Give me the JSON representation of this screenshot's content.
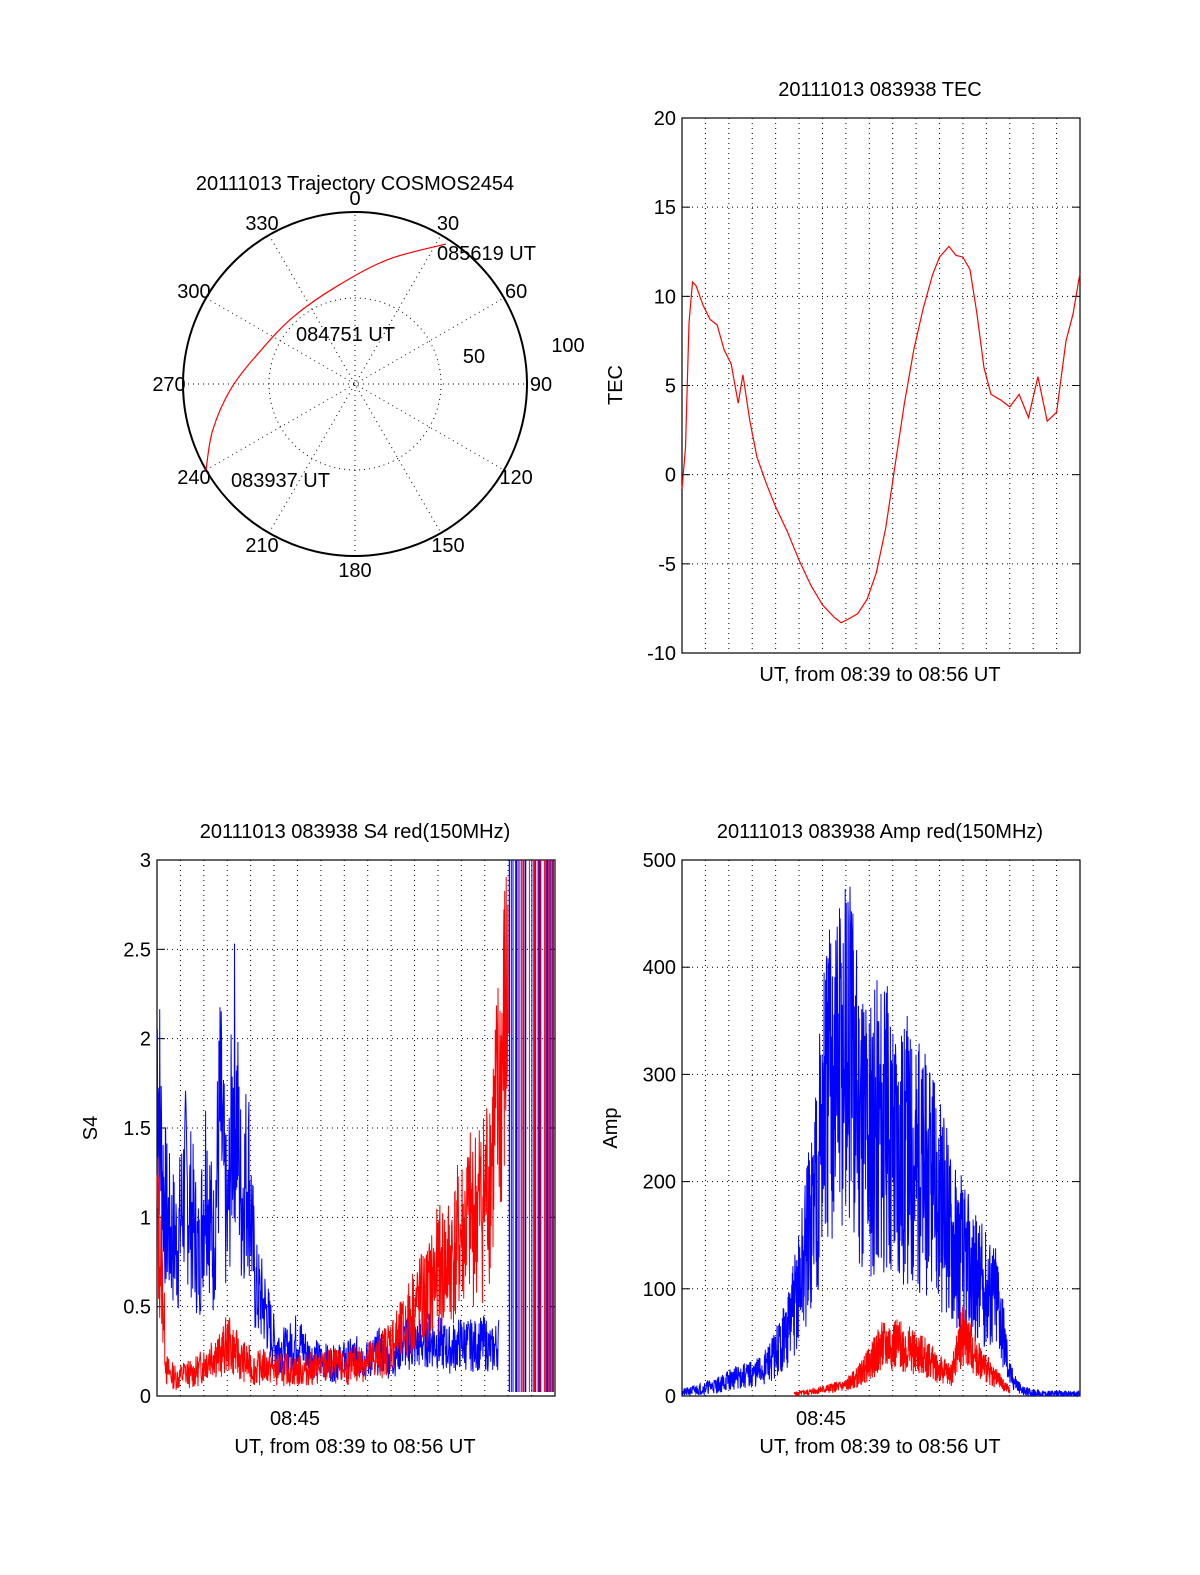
{
  "colors": {
    "red": "#ff0000",
    "blue": "#0000ff",
    "axis": "#000000",
    "background": "#ffffff"
  },
  "chart_data": [
    {
      "type": "polar",
      "title": "20111013 Trajectory COSMOS2454",
      "azimuth_labels": [
        "0",
        "30",
        "60",
        "90",
        "120",
        "150",
        "180",
        "210",
        "240",
        "270",
        "300",
        "330"
      ],
      "radial_labels": [
        "50",
        "100"
      ],
      "grid": true,
      "series": [
        {
          "color": "#ff0000",
          "points": [
            {
              "az": 240,
              "zenith": 100
            },
            {
              "az": 252,
              "zenith": 87
            },
            {
              "az": 268,
              "zenith": 72
            },
            {
              "az": 290,
              "zenith": 58
            },
            {
              "az": 318,
              "zenith": 53
            },
            {
              "az": 350,
              "zenith": 58
            },
            {
              "az": 15,
              "zenith": 75
            },
            {
              "az": 33,
              "zenith": 97
            }
          ]
        }
      ],
      "annotations": [
        {
          "text": "085619 UT",
          "az": 33,
          "zenith": 97
        },
        {
          "text": "084751 UT",
          "az": 318,
          "zenith": 53
        },
        {
          "text": "083937 UT",
          "az": 240,
          "zenith": 100
        }
      ]
    },
    {
      "type": "line",
      "title": "20111013 083938 TEC",
      "xlabel": "UT, from 08:39 to 08:56 UT",
      "ylabel": "TEC",
      "ylim": [
        -10,
        20
      ],
      "yticks": [
        "-10",
        "-5",
        "0",
        "5",
        "10",
        "15",
        "20"
      ],
      "xlim": [
        0,
        17
      ],
      "grid": true,
      "series": [
        {
          "color": "#ff0000",
          "x": [
            0.0,
            0.15,
            0.3,
            0.45,
            0.6,
            0.9,
            1.2,
            1.5,
            1.8,
            2.1,
            2.4,
            2.6,
            2.9,
            3.2,
            3.6,
            4.0,
            4.5,
            5.0,
            5.5,
            6.0,
            6.5,
            6.8,
            7.1,
            7.5,
            7.9,
            8.3,
            8.7,
            9.1,
            9.5,
            9.9,
            10.3,
            10.7,
            11.0,
            11.4,
            11.7,
            12.0,
            12.3,
            12.6,
            12.9,
            13.2,
            13.6,
            14.0,
            14.4,
            14.8,
            15.2,
            15.6,
            16.0,
            16.4,
            16.7,
            17.0
          ],
          "y": [
            -0.8,
            1.5,
            8.5,
            10.8,
            10.6,
            9.5,
            8.7,
            8.4,
            7.0,
            6.2,
            4.0,
            5.6,
            3.0,
            1.0,
            -0.5,
            -1.8,
            -3.2,
            -4.8,
            -6.2,
            -7.3,
            -8.0,
            -8.3,
            -8.1,
            -7.8,
            -7.0,
            -5.5,
            -3.0,
            0.5,
            4.0,
            7.0,
            9.3,
            11.2,
            12.2,
            12.8,
            12.3,
            12.2,
            11.5,
            9.0,
            6.0,
            4.5,
            4.2,
            3.8,
            4.5,
            3.2,
            5.5,
            3.0,
            3.5,
            7.5,
            9.0,
            11.3
          ]
        }
      ]
    },
    {
      "type": "line",
      "title": "20111013 083938 S4 red(150MHz)",
      "xlabel": "UT, from 08:39 to 08:56 UT",
      "ylabel": "S4",
      "ylim": [
        0,
        3
      ],
      "yticks": [
        "0",
        "0.5",
        "1",
        "1.5",
        "2",
        "2.5",
        "3"
      ],
      "xticks": [
        "08:45"
      ],
      "xlim": [
        0,
        17
      ],
      "grid": true,
      "series": [
        {
          "color": "#0000ff",
          "x": [
            0.0,
            0.2,
            0.4,
            0.6,
            0.9,
            1.2,
            1.5,
            1.8,
            2.1,
            2.4,
            2.7,
            3.0,
            3.3,
            3.6,
            3.9,
            4.2,
            4.6,
            5.0,
            5.5,
            6.0,
            6.5,
            7.0,
            7.5,
            8.0,
            8.5,
            9.0,
            9.5,
            10.0,
            10.5,
            11.0,
            11.5,
            12.0,
            12.5,
            13.0,
            13.5,
            14.0,
            14.3,
            14.6
          ],
          "y": [
            2.0,
            1.3,
            1.0,
            0.9,
            0.85,
            1.2,
            1.0,
            0.75,
            1.3,
            0.8,
            1.6,
            0.9,
            1.8,
            1.1,
            1.3,
            0.6,
            0.5,
            0.3,
            0.25,
            0.32,
            0.22,
            0.2,
            0.18,
            0.2,
            0.22,
            0.2,
            0.25,
            0.2,
            0.3,
            0.28,
            0.32,
            0.3,
            0.26,
            0.3,
            0.28,
            0.3,
            0.25,
            0.3
          ]
        },
        {
          "color": "#ff0000",
          "x": [
            0.0,
            0.2,
            0.4,
            0.6,
            0.9,
            1.2,
            1.5,
            1.8,
            2.1,
            2.4,
            2.7,
            3.0,
            3.3,
            3.6,
            3.9,
            4.2,
            4.6,
            5.0,
            5.5,
            6.0,
            6.5,
            7.0,
            7.5,
            8.0,
            8.5,
            9.0,
            9.5,
            10.0,
            10.5,
            11.0,
            11.5,
            12.0,
            12.5,
            13.0,
            13.5,
            14.0,
            14.5,
            15.0
          ],
          "y": [
            1.0,
            0.7,
            0.15,
            0.12,
            0.1,
            0.13,
            0.12,
            0.15,
            0.2,
            0.25,
            0.22,
            0.3,
            0.25,
            0.2,
            0.18,
            0.15,
            0.17,
            0.15,
            0.15,
            0.14,
            0.15,
            0.16,
            0.17,
            0.15,
            0.18,
            0.2,
            0.22,
            0.3,
            0.35,
            0.5,
            0.55,
            0.7,
            0.75,
            0.9,
            1.0,
            1.1,
            1.5,
            2.2
          ]
        }
      ]
    },
    {
      "type": "line",
      "title": "20111013 083938 Amp red(150MHz)",
      "xlabel": "UT, from 08:39 to 08:56 UT",
      "ylabel": "Amp",
      "ylim": [
        0,
        500
      ],
      "yticks": [
        "0",
        "100",
        "200",
        "300",
        "400",
        "500"
      ],
      "xticks": [
        "08:45"
      ],
      "xlim": [
        0,
        17
      ],
      "grid": true,
      "series": [
        {
          "color": "#0000ff",
          "x": [
            0.0,
            0.5,
            1.0,
            1.5,
            2.0,
            2.5,
            3.0,
            3.5,
            4.0,
            4.5,
            5.0,
            5.5,
            6.0,
            6.5,
            7.0,
            7.5,
            8.0,
            8.5,
            9.0,
            9.5,
            10.0,
            10.5,
            11.0,
            11.5,
            12.0,
            12.5,
            13.0,
            13.5,
            14.0,
            14.5,
            15.0,
            15.5,
            16.0,
            16.5,
            17.0
          ],
          "y": [
            3,
            5,
            8,
            10,
            15,
            18,
            20,
            25,
            40,
            60,
            100,
            160,
            260,
            300,
            320,
            280,
            250,
            260,
            240,
            230,
            220,
            200,
            180,
            150,
            130,
            110,
            100,
            90,
            20,
            5,
            3,
            2,
            2,
            2,
            2
          ]
        },
        {
          "color": "#ff0000",
          "x": [
            4.8,
            5.5,
            6.0,
            6.5,
            7.0,
            7.5,
            8.0,
            8.5,
            9.0,
            9.5,
            10.0,
            10.5,
            11.0,
            11.5,
            12.0,
            12.5,
            13.0,
            13.5,
            14.0
          ],
          "y": [
            2,
            4,
            6,
            8,
            10,
            18,
            30,
            45,
            50,
            45,
            40,
            35,
            25,
            20,
            60,
            40,
            25,
            15,
            5
          ]
        }
      ]
    }
  ]
}
